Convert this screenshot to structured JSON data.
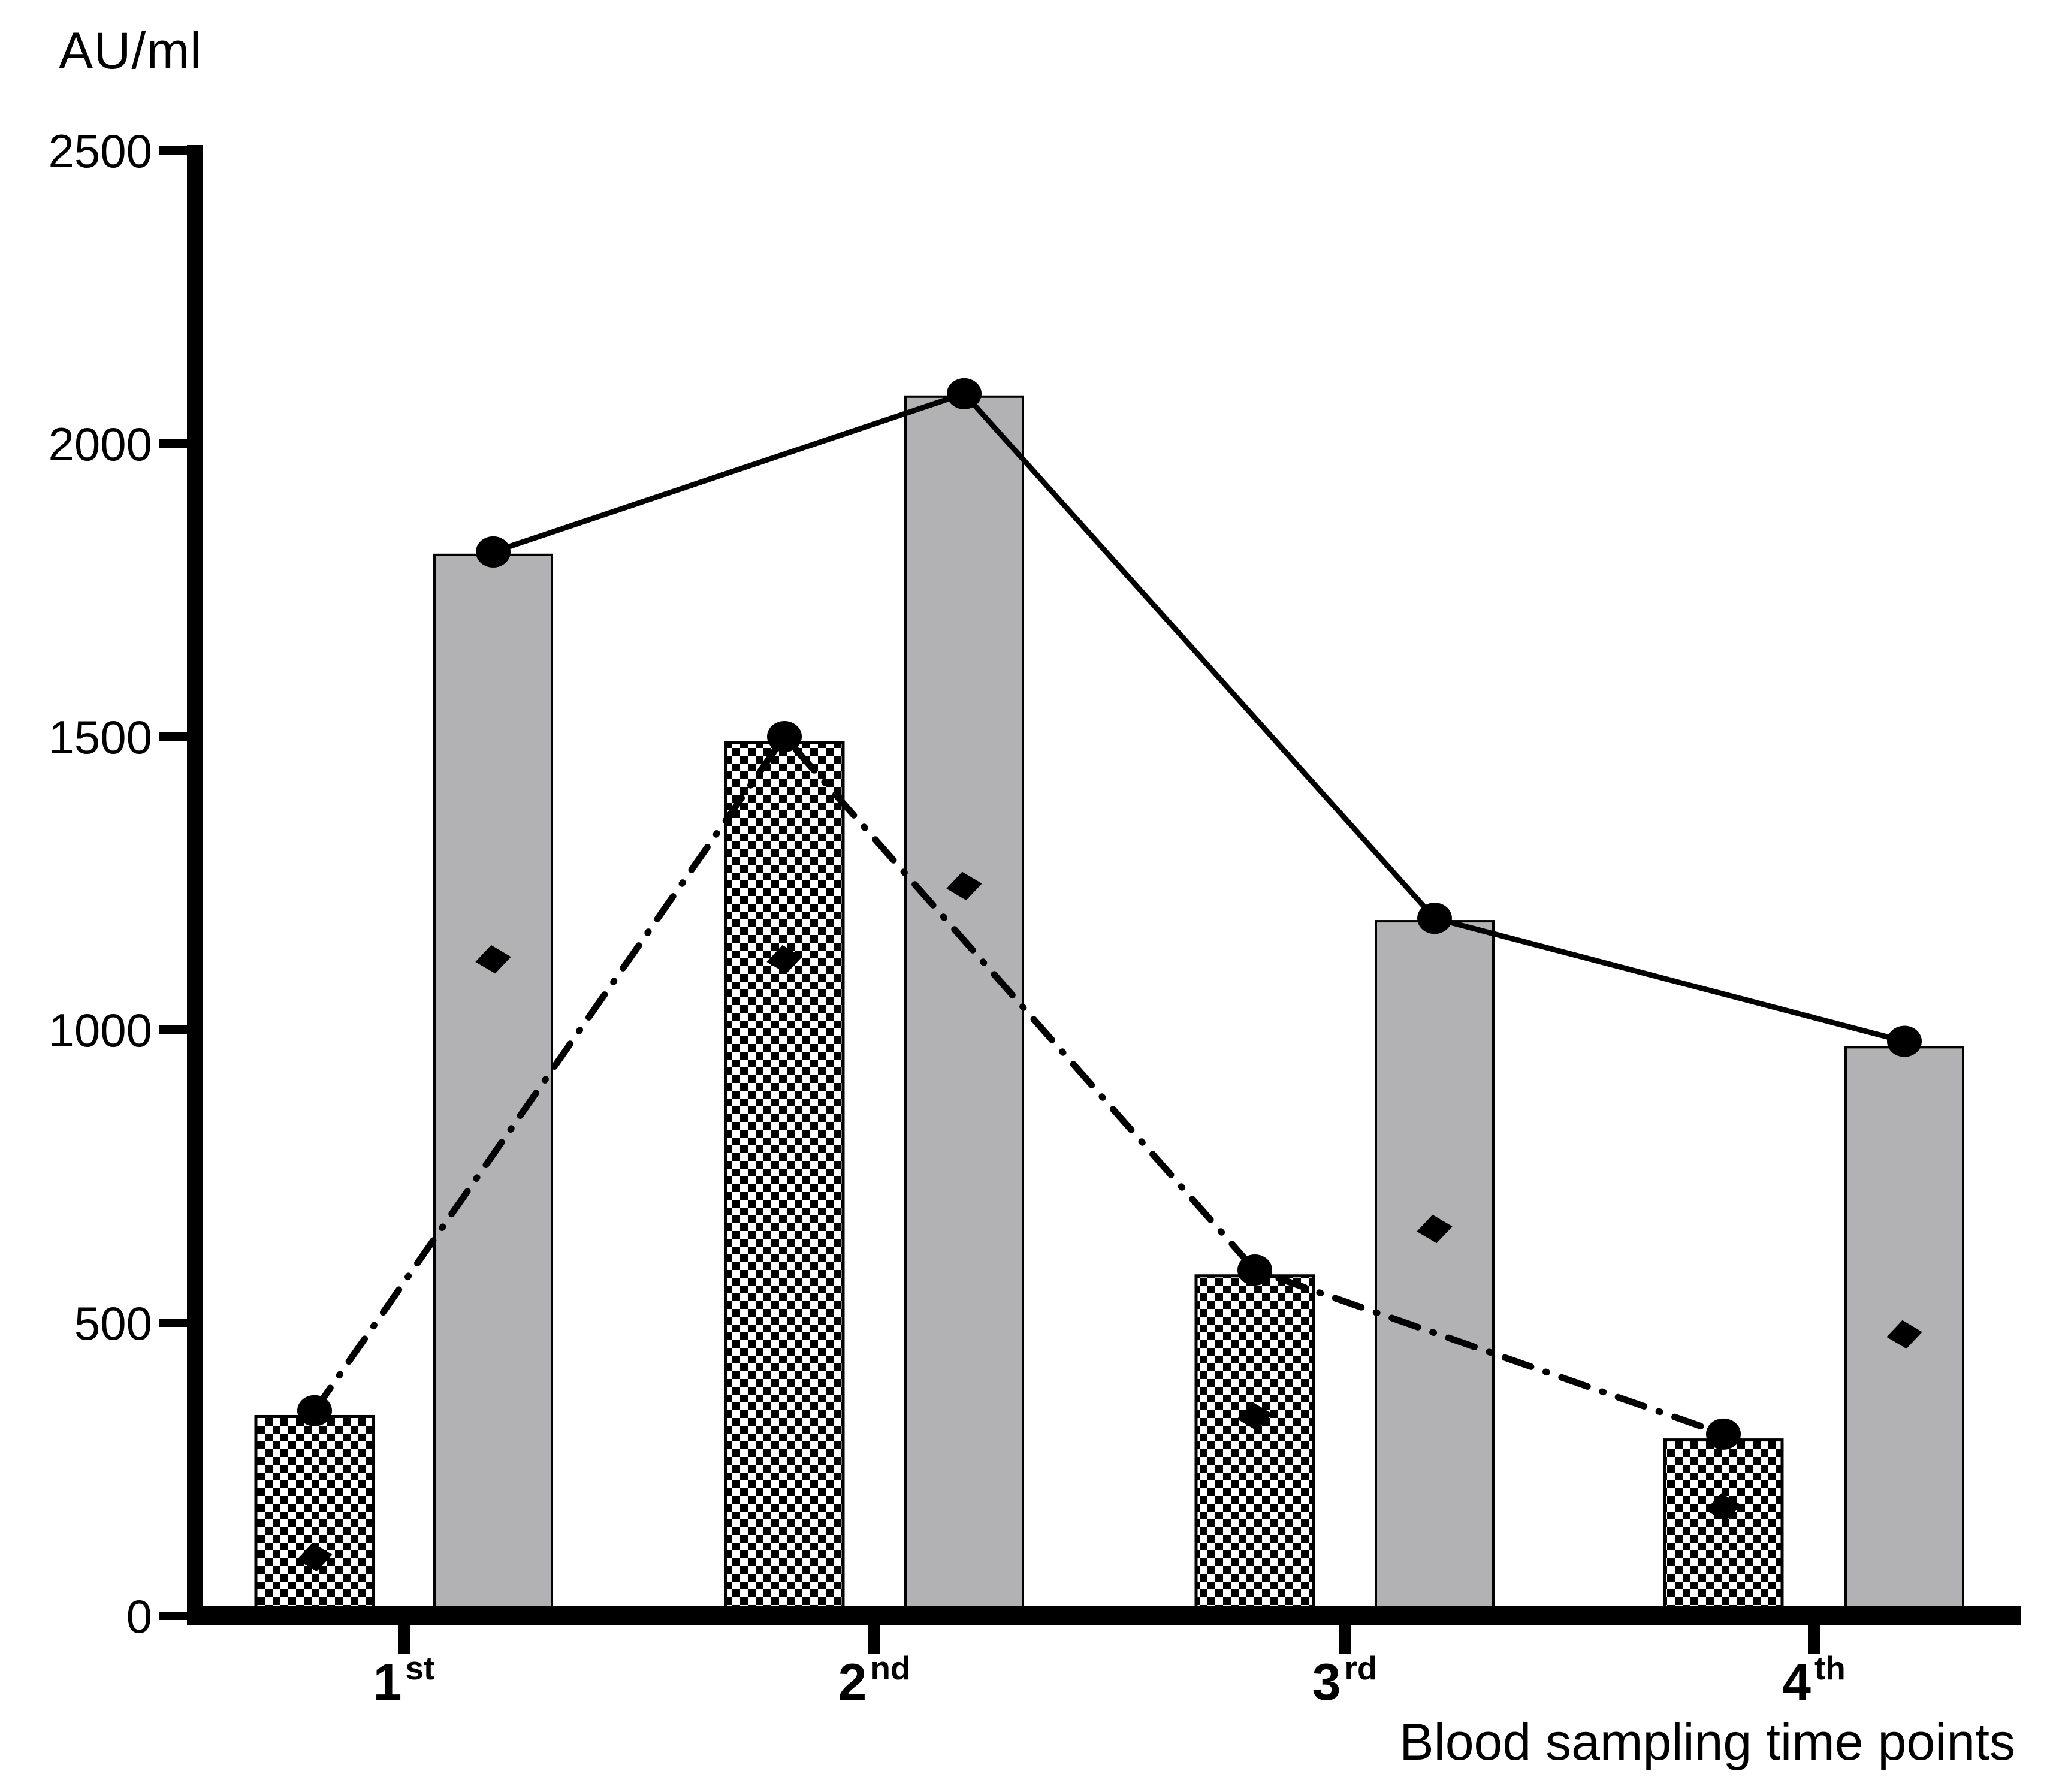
{
  "chart_data": {
    "type": "bar+line",
    "title": "",
    "ylabel": "AU/ml",
    "xlabel": "Blood sampling time points",
    "ylim": [
      0,
      2500
    ],
    "yticks": [
      0,
      500,
      1000,
      1500,
      2000,
      2500
    ],
    "grid": false,
    "legend_position": "none",
    "categories": [
      {
        "number": "1",
        "suffix": "st"
      },
      {
        "number": "2",
        "suffix": "nd"
      },
      {
        "number": "3",
        "suffix": "rd"
      },
      {
        "number": "4",
        "suffix": "th"
      }
    ],
    "series": [
      {
        "name": "hatched-bars",
        "type": "bar",
        "style": "checkerboard",
        "anchor": "hatched",
        "values": [
          340,
          1490,
          580,
          300
        ]
      },
      {
        "name": "gray-bars",
        "type": "bar",
        "style": "solid-gray",
        "anchor": "gray",
        "values": [
          1810,
          2080,
          1185,
          970
        ]
      },
      {
        "name": "solid-line-circles",
        "type": "line",
        "style": "solid",
        "marker": "circle",
        "anchor": "gray",
        "values": [
          1815,
          2085,
          1190,
          980
        ]
      },
      {
        "name": "dashdot-line-circles",
        "type": "line",
        "style": "dash-dot",
        "marker": "circle",
        "anchor": "hatched",
        "values": [
          350,
          1500,
          590,
          310
        ]
      },
      {
        "name": "gray-bar-diamonds",
        "type": "scatter",
        "marker": "diamond",
        "anchor": "gray",
        "values": [
          1120,
          1245,
          660,
          480
        ]
      },
      {
        "name": "hatched-bar-diamonds",
        "type": "scatter",
        "marker": "diamond",
        "anchor": "hatched",
        "values": [
          100,
          1120,
          340,
          185
        ]
      }
    ],
    "colors": {
      "bar_gray": "#b2b2b4",
      "ink": "#000000",
      "background": "#ffffff"
    }
  }
}
